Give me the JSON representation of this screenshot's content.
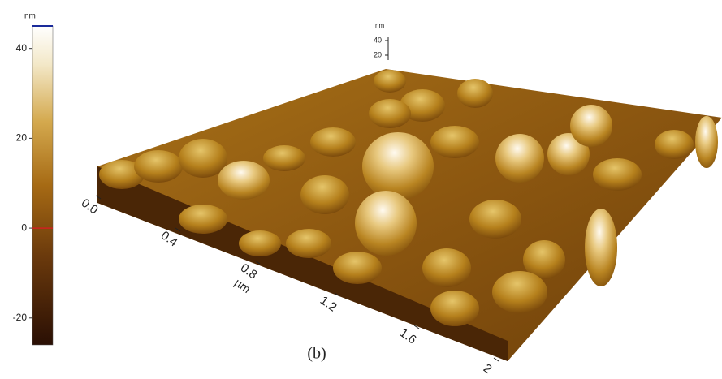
{
  "chart_data": {
    "type": "afm-3d",
    "colorbar": {
      "unit": "nm",
      "zlim": [
        -26,
        45
      ],
      "zticks": [
        -20,
        0,
        20,
        40
      ]
    },
    "z_axis": {
      "unit": "nm",
      "ticks": [
        20,
        40
      ]
    },
    "x_axis": {
      "unit": "µm",
      "xlim": [
        0,
        2
      ],
      "ticks": [
        {
          "value": 0,
          "label": "0.0"
        },
        0.4,
        0.8,
        1.2,
        1.6,
        2
      ]
    },
    "label": "(b)"
  }
}
